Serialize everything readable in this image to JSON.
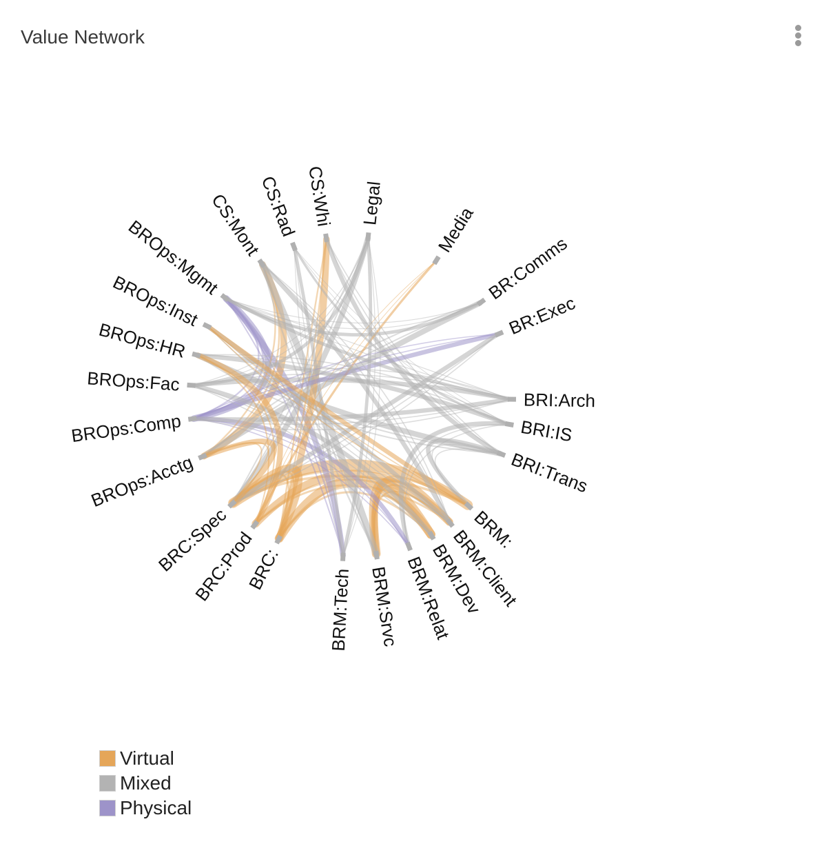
{
  "panel": {
    "title": "Value Network",
    "menu_icon": "kebab-menu-icon"
  },
  "chart_data": {
    "type": "chord",
    "nodes": [
      {
        "name": "Legal",
        "angle": 6
      },
      {
        "name": "Media",
        "angle": 32
      },
      {
        "name": "BR:Comms",
        "angle": 54
      },
      {
        "name": "BR:Exec",
        "angle": 67
      },
      {
        "name": "BRI:Arch",
        "angle": 91
      },
      {
        "name": "BRI:IS",
        "angle": 100
      },
      {
        "name": "BRI:Trans",
        "angle": 111
      },
      {
        "name": "BRM:",
        "angle": 133
      },
      {
        "name": "BRM:Client",
        "angle": 142
      },
      {
        "name": "BRM:Dev",
        "angle": 150
      },
      {
        "name": "BRM:Relat",
        "angle": 159
      },
      {
        "name": "BRM:Srvc",
        "angle": 171
      },
      {
        "name": "BRM:Tech",
        "angle": 183
      },
      {
        "name": "BRC:",
        "angle": 207
      },
      {
        "name": "BRC:Prod",
        "angle": 217
      },
      {
        "name": "BRC:Spec",
        "angle": 228
      },
      {
        "name": "BROps:Acctg",
        "angle": 248
      },
      {
        "name": "BROps:Comp",
        "angle": 262
      },
      {
        "name": "BROps:Fac",
        "angle": 274
      },
      {
        "name": "BROps:HR",
        "angle": 285
      },
      {
        "name": "BROps:Inst",
        "angle": 296
      },
      {
        "name": "BROps:Mgmt",
        "angle": 308
      },
      {
        "name": "CS:Mont",
        "angle": 326
      },
      {
        "name": "CS:Rad",
        "angle": 339
      },
      {
        "name": "CS:Whi",
        "angle": 351
      }
    ],
    "links": [
      {
        "source": "BRC:Spec",
        "target": "BRM:",
        "type": "Virtual",
        "weight": 9
      },
      {
        "source": "BRC:Prod",
        "target": "BRM:Client",
        "type": "Virtual",
        "weight": 7
      },
      {
        "source": "BRC:",
        "target": "BRM:Dev",
        "type": "Virtual",
        "weight": 8
      },
      {
        "source": "BRC:",
        "target": "BRC:Spec",
        "type": "Virtual",
        "weight": 7
      },
      {
        "source": "BRM:Srvc",
        "target": "BRM:Dev",
        "type": "Virtual",
        "weight": 8
      },
      {
        "source": "BRM:Srvc",
        "target": "BRM:Client",
        "type": "Virtual",
        "weight": 6
      },
      {
        "source": "BRM:Tech",
        "target": "BROps:Mgmt",
        "type": "Physical",
        "weight": 5
      },
      {
        "source": "BRM:Relat",
        "target": "BRI:IS",
        "type": "Mixed",
        "weight": 4
      },
      {
        "source": "BRM:Relat",
        "target": "BROps:Comp",
        "type": "Physical",
        "weight": 4
      },
      {
        "source": "BROps:Comp",
        "target": "BROps:Mgmt",
        "type": "Physical",
        "weight": 6
      },
      {
        "source": "BROps:Acctg",
        "target": "CS:Mont",
        "type": "Virtual",
        "weight": 6
      },
      {
        "source": "BROps:Acctg",
        "target": "BR:Comms",
        "type": "Mixed",
        "weight": 5
      },
      {
        "source": "BROps:Fac",
        "target": "BRI:Arch",
        "type": "Mixed",
        "weight": 4
      },
      {
        "source": "BROps:HR",
        "target": "BRI:Trans",
        "type": "Mixed",
        "weight": 5
      },
      {
        "source": "BROps:Inst",
        "target": "BRM:Client",
        "type": "Mixed",
        "weight": 4
      },
      {
        "source": "CS:Mont",
        "target": "BRM:Srvc",
        "type": "Mixed",
        "weight": 6
      },
      {
        "source": "CS:Whi",
        "target": "BRC:",
        "type": "Virtual",
        "weight": 6
      },
      {
        "source": "CS:Whi",
        "target": "BRI:Trans",
        "type": "Mixed",
        "weight": 4
      },
      {
        "source": "CS:Rad",
        "target": "BRM:Tech",
        "type": "Mixed",
        "weight": 3
      },
      {
        "source": "Legal",
        "target": "BRC:Spec",
        "type": "Mixed",
        "weight": 5
      },
      {
        "source": "Legal",
        "target": "BROps:Fac",
        "type": "Mixed",
        "weight": 3
      },
      {
        "source": "Media",
        "target": "BRC:Prod",
        "type": "Virtual",
        "weight": 2
      },
      {
        "source": "BR:Exec",
        "target": "BROps:Comp",
        "type": "Physical",
        "weight": 4
      },
      {
        "source": "BR:Exec",
        "target": "BRC:Spec",
        "type": "Mixed",
        "weight": 4
      },
      {
        "source": "BR:Comms",
        "target": "BROps:Mgmt",
        "type": "Mixed",
        "weight": 3
      },
      {
        "source": "BRI:Arch",
        "target": "BROps:Comp",
        "type": "Mixed",
        "weight": 4
      },
      {
        "source": "BRI:IS",
        "target": "BROps:HR",
        "type": "Mixed",
        "weight": 4
      },
      {
        "source": "BRI:Trans",
        "target": "BRM:",
        "type": "Mixed",
        "weight": 4
      },
      {
        "source": "BRM:",
        "target": "BROps:Inst",
        "type": "Virtual",
        "weight": 4
      },
      {
        "source": "BRM:Dev",
        "target": "BROps:Fac",
        "type": "Mixed",
        "weight": 4
      },
      {
        "source": "BRM:Client",
        "target": "CS:Mont",
        "type": "Mixed",
        "weight": 4
      },
      {
        "source": "BRC:Prod",
        "target": "BROps:HR",
        "type": "Virtual",
        "weight": 5
      },
      {
        "source": "BRC:Spec",
        "target": "BROps:Acctg",
        "type": "Virtual",
        "weight": 5
      },
      {
        "source": "BRM:Tech",
        "target": "Legal",
        "type": "Mixed",
        "weight": 3
      },
      {
        "source": "CS:Rad",
        "target": "BRI:IS",
        "type": "Mixed",
        "weight": 2
      },
      {
        "source": "BROps:Mgmt",
        "target": "BRI:Arch",
        "type": "Mixed",
        "weight": 3
      }
    ],
    "colors": {
      "Virtual": "#e5a659",
      "Mixed": "#b3b3b3",
      "Physical": "#9d93c9"
    },
    "legend": [
      {
        "label": "Virtual",
        "key": "Virtual"
      },
      {
        "label": "Mixed",
        "key": "Mixed"
      },
      {
        "label": "Physical",
        "key": "Physical"
      }
    ]
  }
}
